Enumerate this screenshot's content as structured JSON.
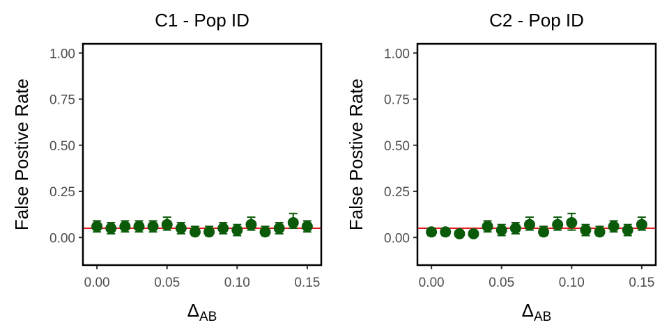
{
  "chart_data": [
    {
      "type": "scatter",
      "title": "C1 - Pop ID",
      "xlabel": "Δ",
      "xlabel_sub": "AB",
      "ylabel": "False Postive Rate",
      "xlim": [
        -0.01,
        0.16
      ],
      "ylim": [
        -0.15,
        1.05
      ],
      "xticks": [
        0.0,
        0.05,
        0.1,
        0.15
      ],
      "xtick_labels": [
        "0.00",
        "0.05",
        "0.10",
        "0.15"
      ],
      "yticks": [
        0.0,
        0.25,
        0.5,
        0.75,
        1.0
      ],
      "ytick_labels": [
        "0.00",
        "0.25",
        "0.50",
        "0.75",
        "1.00"
      ],
      "grid": false,
      "reference_line": {
        "y": 0.05,
        "color": "#e41a1c"
      },
      "series": [
        {
          "color": "#0a5a0a",
          "x": [
            0.0,
            0.01,
            0.02,
            0.03,
            0.04,
            0.05,
            0.06,
            0.07,
            0.08,
            0.09,
            0.1,
            0.11,
            0.12,
            0.13,
            0.14,
            0.15
          ],
          "y": [
            0.06,
            0.05,
            0.06,
            0.06,
            0.06,
            0.07,
            0.05,
            0.03,
            0.03,
            0.05,
            0.04,
            0.07,
            0.03,
            0.05,
            0.08,
            0.06
          ],
          "err_low": [
            0.03,
            0.02,
            0.03,
            0.03,
            0.03,
            0.04,
            0.02,
            0.01,
            0.01,
            0.02,
            0.01,
            0.04,
            0.01,
            0.02,
            0.05,
            0.03
          ],
          "err_high": [
            0.09,
            0.08,
            0.09,
            0.09,
            0.09,
            0.11,
            0.08,
            0.06,
            0.06,
            0.08,
            0.07,
            0.11,
            0.06,
            0.08,
            0.13,
            0.09
          ]
        }
      ]
    },
    {
      "type": "scatter",
      "title": "C2 - Pop ID",
      "xlabel": "Δ",
      "xlabel_sub": "AB",
      "ylabel": "False Postive Rate",
      "xlim": [
        -0.01,
        0.16
      ],
      "ylim": [
        -0.15,
        1.05
      ],
      "xticks": [
        0.0,
        0.05,
        0.1,
        0.15
      ],
      "xtick_labels": [
        "0.00",
        "0.05",
        "0.10",
        "0.15"
      ],
      "yticks": [
        0.0,
        0.25,
        0.5,
        0.75,
        1.0
      ],
      "ytick_labels": [
        "0.00",
        "0.25",
        "0.50",
        "0.75",
        "1.00"
      ],
      "grid": false,
      "reference_line": {
        "y": 0.05,
        "color": "#e41a1c"
      },
      "series": [
        {
          "color": "#0a5a0a",
          "x": [
            0.0,
            0.01,
            0.02,
            0.03,
            0.04,
            0.05,
            0.06,
            0.07,
            0.08,
            0.09,
            0.1,
            0.11,
            0.12,
            0.13,
            0.14,
            0.15
          ],
          "y": [
            0.03,
            0.03,
            0.02,
            0.02,
            0.06,
            0.04,
            0.05,
            0.07,
            0.03,
            0.07,
            0.08,
            0.04,
            0.03,
            0.06,
            0.04,
            0.07
          ],
          "err_low": [
            0.01,
            0.01,
            0.01,
            0.01,
            0.03,
            0.01,
            0.02,
            0.04,
            0.01,
            0.04,
            0.04,
            0.01,
            0.01,
            0.03,
            0.01,
            0.04
          ],
          "err_high": [
            0.05,
            0.05,
            0.03,
            0.03,
            0.09,
            0.07,
            0.08,
            0.11,
            0.06,
            0.11,
            0.13,
            0.07,
            0.06,
            0.09,
            0.07,
            0.11
          ]
        }
      ]
    }
  ]
}
